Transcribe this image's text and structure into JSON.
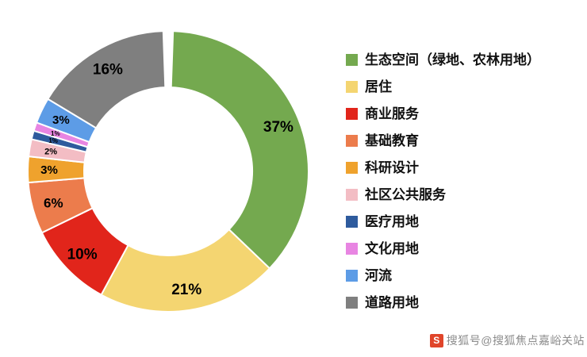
{
  "chart_data": {
    "type": "pie",
    "subtype": "donut",
    "title": "",
    "legend_position": "right",
    "start_angle_deg": -90,
    "top_gap_deg": 4,
    "grid": false,
    "labels_format": "percent",
    "series": [
      {
        "label": "生态空间（绿地、农林用地）",
        "value": 37,
        "color": "#74A94F"
      },
      {
        "label": "居住",
        "value": 21,
        "color": "#F4D571"
      },
      {
        "label": "商业服务",
        "value": 10,
        "color": "#E1251B"
      },
      {
        "label": "基础教育",
        "value": 6,
        "color": "#EC7C4C"
      },
      {
        "label": "科研设计",
        "value": 3,
        "color": "#EFA22D"
      },
      {
        "label": "社区公共服务",
        "value": 2,
        "color": "#F3BDC4"
      },
      {
        "label": "医疗用地",
        "value": 1,
        "color": "#2E5B9D"
      },
      {
        "label": "文化用地",
        "value": 1,
        "color": "#E885E2"
      },
      {
        "label": "河流",
        "value": 3,
        "color": "#5D9CE6"
      },
      {
        "label": "道路用地",
        "value": 16,
        "color": "#7F7F7F"
      }
    ],
    "percent_labels": [
      "37%",
      "21%",
      "10%",
      "6%",
      "3%",
      "2%",
      "1%",
      "1%",
      "3%",
      "16%"
    ]
  },
  "watermark": {
    "logo_glyph": "S",
    "text": "搜狐号@搜狐焦点嘉峪关站"
  }
}
